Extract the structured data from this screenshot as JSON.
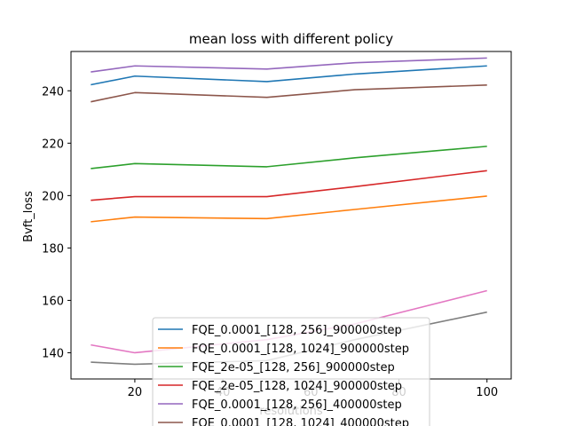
{
  "chart_data": {
    "type": "line",
    "title": "mean loss with different policy",
    "xlabel": "resolutions",
    "ylabel": "Bvft_loss",
    "xlim": [
      5.5,
      105.5
    ],
    "ylim": [
      130,
      255
    ],
    "xticks": [
      20,
      40,
      60,
      80,
      100
    ],
    "yticks": [
      140,
      160,
      180,
      200,
      220,
      240
    ],
    "grid": false,
    "legend_position": "lower-center",
    "x": [
      10,
      20,
      50,
      70,
      100
    ],
    "series": [
      {
        "name": "FQE_0.0001_[128, 256]_900000step",
        "color": "#1f77b4",
        "values": [
          242.3,
          245.6,
          243.5,
          246.4,
          249.5
        ]
      },
      {
        "name": "FQE_0.0001_[128, 1024]_900000step",
        "color": "#ff7f0e",
        "values": [
          190.0,
          191.8,
          191.2,
          194.7,
          199.8
        ]
      },
      {
        "name": "FQE_2e-05_[128, 256]_900000step",
        "color": "#2ca02c",
        "values": [
          210.3,
          212.2,
          211.0,
          214.4,
          218.8
        ]
      },
      {
        "name": "FQE_2e-05_[128, 1024]_900000step",
        "color": "#d62728",
        "values": [
          198.2,
          199.6,
          199.6,
          203.4,
          209.5
        ]
      },
      {
        "name": "FQE_0.0001_[128, 256]_400000step",
        "color": "#9467bd",
        "values": [
          247.2,
          249.5,
          248.3,
          250.7,
          252.5
        ]
      },
      {
        "name": "FQE_0.0001_[128, 1024]_400000step",
        "color": "#8c564b",
        "values": [
          235.8,
          239.3,
          237.5,
          240.4,
          242.2
        ]
      },
      {
        "name": "",
        "color": "#e377c2",
        "values": [
          143.0,
          140.0,
          145.0,
          151.0,
          163.7
        ]
      },
      {
        "name": "",
        "color": "#7f7f7f",
        "values": [
          136.4,
          135.6,
          137.0,
          145.0,
          155.5
        ]
      }
    ]
  }
}
